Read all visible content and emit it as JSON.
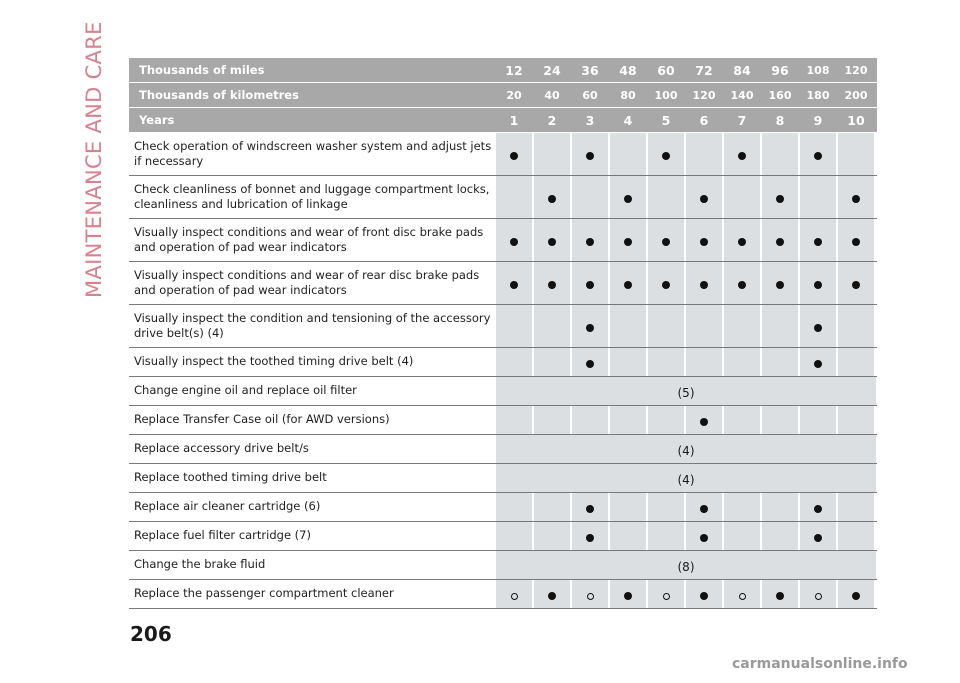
{
  "section_title": "MAINTENANCE AND CARE",
  "header_rows": [
    {
      "label": "Thousands of miles",
      "values": [
        "12",
        "24",
        "36",
        "48",
        "60",
        "72",
        "84",
        "96",
        "108",
        "120"
      ]
    },
    {
      "label": "Thousands of kilometres",
      "values": [
        "20",
        "40",
        "60",
        "80",
        "100",
        "120",
        "140",
        "160",
        "180",
        "200"
      ]
    },
    {
      "label": "Years",
      "values": [
        "1",
        "2",
        "3",
        "4",
        "5",
        "6",
        "7",
        "8",
        "9",
        "10"
      ]
    }
  ],
  "rows": [
    {
      "label": "Check operation of windscreen washer system and adjust jets if necessary",
      "marks": [
        "filled",
        "",
        "filled",
        "",
        "filled",
        "",
        "filled",
        "",
        "filled",
        ""
      ]
    },
    {
      "label": "Check cleanliness of bonnet and luggage compartment locks, cleanliness and lubrication of linkage",
      "marks": [
        "",
        "filled",
        "",
        "filled",
        "",
        "filled",
        "",
        "filled",
        "",
        "filled"
      ]
    },
    {
      "label": "Visually inspect conditions and wear of front disc brake pads and operation of pad wear indicators",
      "marks": [
        "filled",
        "filled",
        "filled",
        "filled",
        "filled",
        "filled",
        "filled",
        "filled",
        "filled",
        "filled"
      ]
    },
    {
      "label": "Visually inspect conditions and wear of rear disc brake pads and operation of pad wear indicators",
      "marks": [
        "filled",
        "filled",
        "filled",
        "filled",
        "filled",
        "filled",
        "filled",
        "filled",
        "filled",
        "filled"
      ]
    },
    {
      "label": "Visually inspect the condition and tensioning of the accessory drive belt(s) (4)",
      "marks": [
        "",
        "",
        "filled",
        "",
        "",
        "",
        "",
        "",
        "filled",
        ""
      ]
    },
    {
      "label": "Visually inspect the toothed timing drive belt (4)",
      "marks": [
        "",
        "",
        "filled",
        "",
        "",
        "",
        "",
        "",
        "filled",
        ""
      ]
    },
    {
      "label": "Change engine oil and replace oil filter",
      "note": "(5)"
    },
    {
      "label": "Replace Transfer Case oil (for AWD versions)",
      "marks": [
        "",
        "",
        "",
        "",
        "",
        "filled",
        "",
        "",
        "",
        ""
      ]
    },
    {
      "label": "Replace accessory drive belt/s",
      "note": "(4)"
    },
    {
      "label": "Replace toothed timing drive belt",
      "note": "(4)"
    },
    {
      "label": "Replace air cleaner cartridge (6)",
      "marks": [
        "",
        "",
        "filled",
        "",
        "",
        "filled",
        "",
        "",
        "filled",
        ""
      ]
    },
    {
      "label": "Replace fuel filter cartridge (7)",
      "marks": [
        "",
        "",
        "filled",
        "",
        "",
        "filled",
        "",
        "",
        "filled",
        ""
      ]
    },
    {
      "label": "Change the brake fluid",
      "note": "(8)"
    },
    {
      "label": "Replace the passenger compartment cleaner",
      "marks": [
        "hollow",
        "filled",
        "hollow",
        "filled",
        "hollow",
        "filled",
        "hollow",
        "filled",
        "hollow",
        "filled"
      ]
    }
  ],
  "page_number": "206",
  "watermark": "carmanualsonline.info",
  "colors": {
    "header_bg": "#a8a8a8",
    "cell_bg": "#dcdfe1",
    "section_title": "#d9828f"
  }
}
